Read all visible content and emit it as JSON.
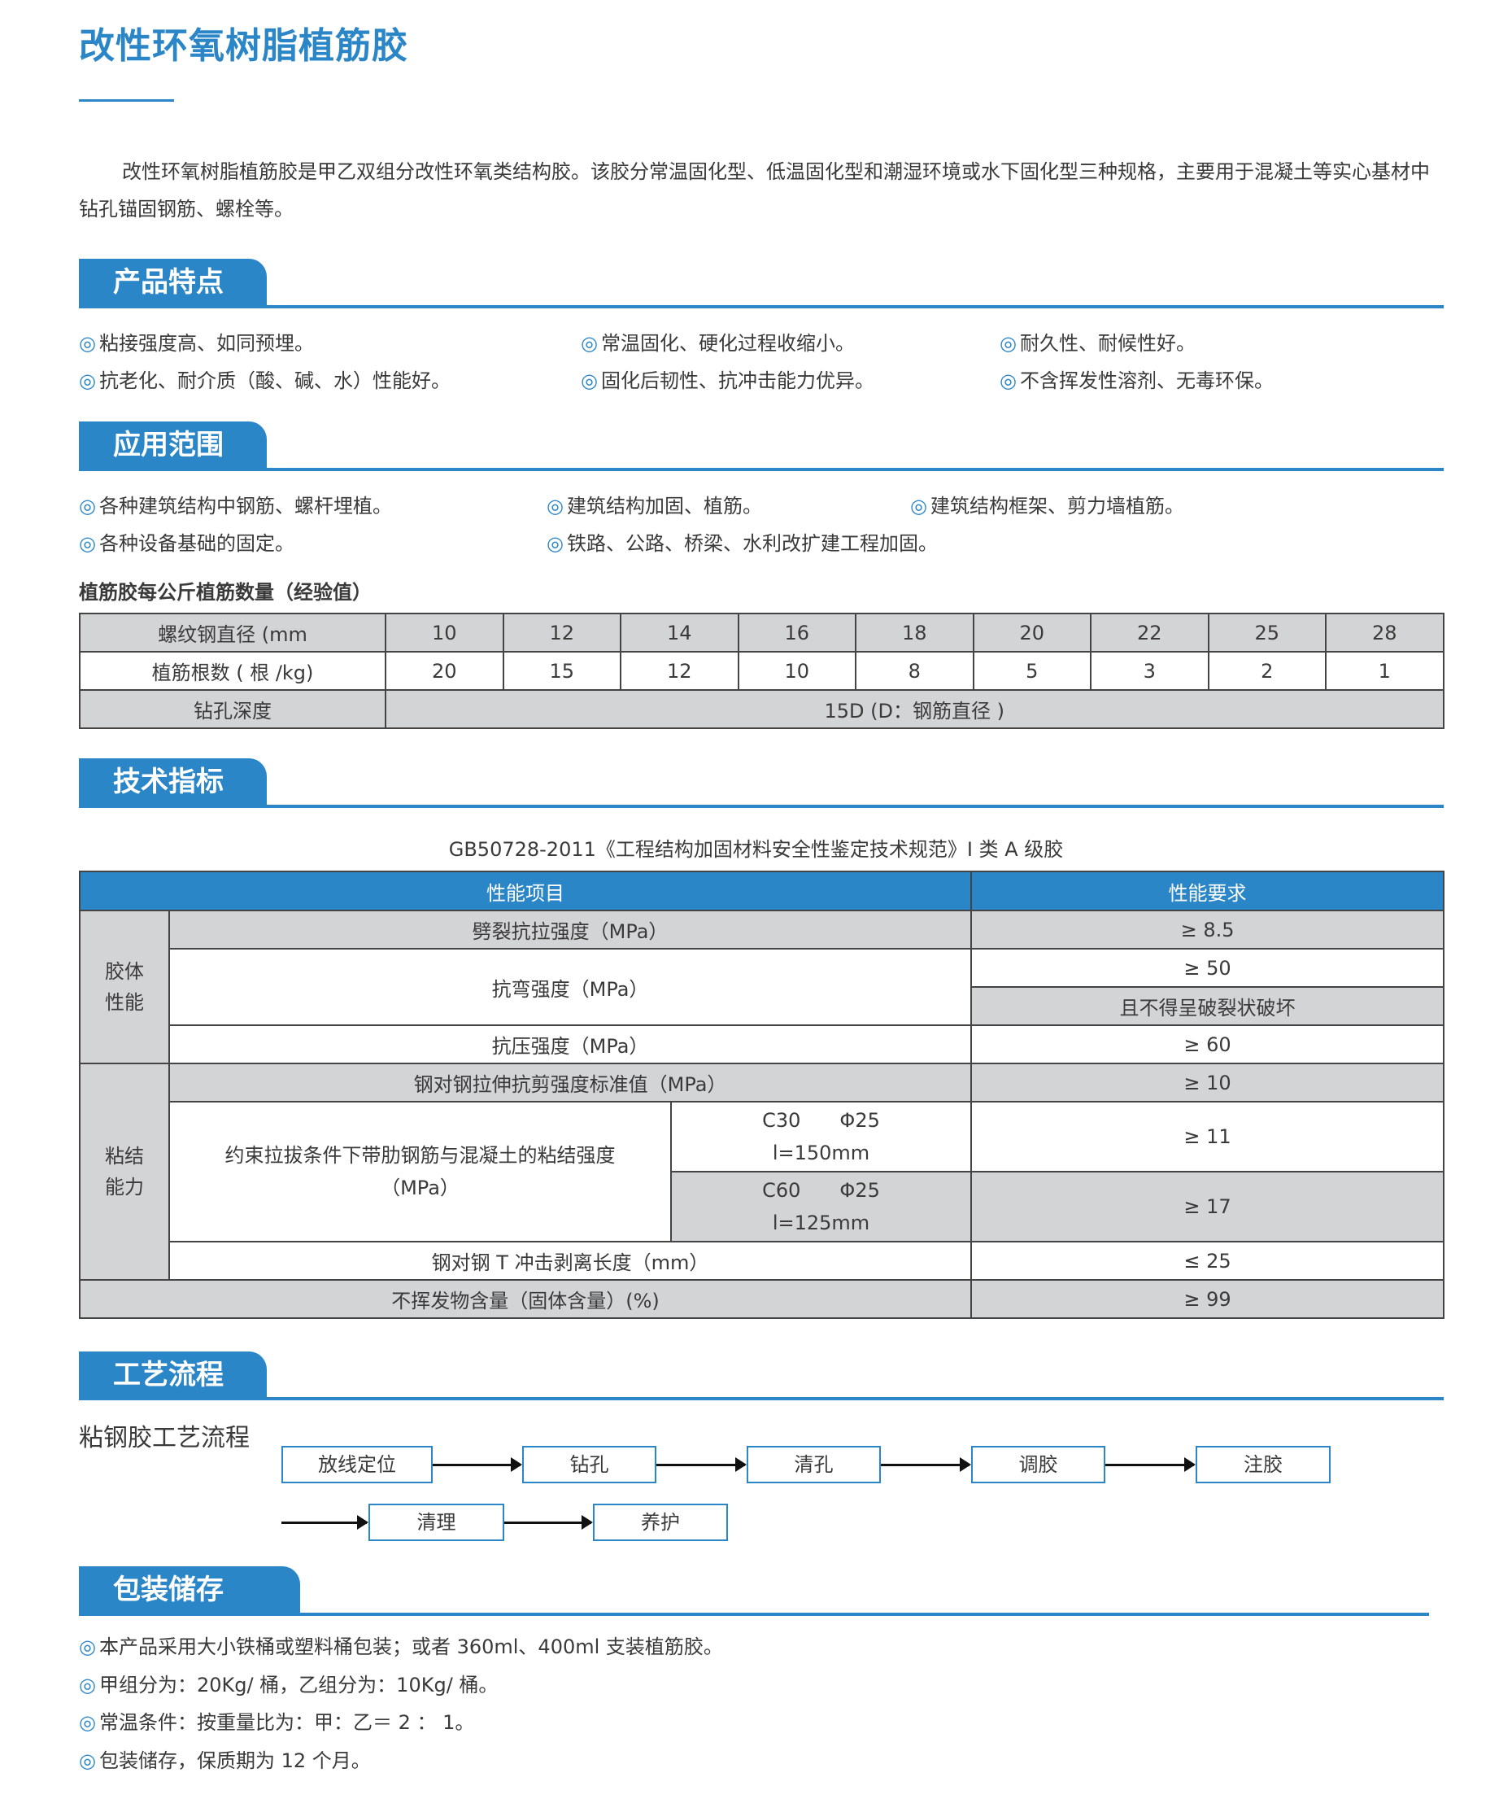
{
  "title": "改性环氧树脂植筋胶",
  "intro": "改性环氧树脂植筋胶是甲乙双组分改性环氧类结构胶。该胶分常温固化型、低温固化型和潮湿环境或水下固化型三种规格，主要用于混凝土等实心基材中钻孔锚固钢筋、螺栓等。",
  "bullet": "◎",
  "colors": {
    "accent": "#2b86c8",
    "cell_gray": "#d3d4d5"
  },
  "features": {
    "heading": "产品特点",
    "items": [
      "粘接强度高、如同预埋。",
      "常温固化、硬化过程收缩小。",
      "耐久性、耐候性好。",
      "抗老化、耐介质（酸、碱、水）性能好。",
      "固化后韧性、抗冲击能力优异。",
      "不含挥发性溶剂、无毒环保。"
    ]
  },
  "applications": {
    "heading": "应用范围",
    "items": [
      "各种建筑结构中钢筋、螺杆埋植。",
      "建筑结构加固、植筋。",
      "建筑结构框架、剪力墙植筋。",
      "各种设备基础的固定。",
      "铁路、公路、桥梁、水利改扩建工程加固。"
    ]
  },
  "rebar_table": {
    "caption": "植筋胶每公斤植筋数量（经验值）",
    "row1_label": "螺纹钢直径 (mm",
    "diameters": [
      "10",
      "12",
      "14",
      "16",
      "18",
      "20",
      "22",
      "25",
      "28"
    ],
    "row2_label": "植筋根数 ( 根 /kg)",
    "counts": [
      "20",
      "15",
      "12",
      "10",
      "8",
      "5",
      "3",
      "2",
      "1"
    ],
    "row3_label": "钻孔深度",
    "depth": "15D (D：钢筋直径 )"
  },
  "spec": {
    "heading": "技术指标",
    "caption": "GB50728-2011《工程结构加固材料安全性鉴定技术规范》I 类 A 级胶",
    "col_item": "性能项目",
    "col_req": "性能要求",
    "group1": "胶体性能",
    "g1_rows": [
      {
        "item": "劈裂抗拉强度（MPa）",
        "req": "≥ 8.5"
      },
      {
        "item": "抗弯强度（MPa）",
        "req": "≥ 50",
        "req2": "且不得呈破裂状破坏"
      },
      {
        "item": "抗压强度（MPa）",
        "req": "≥ 60"
      }
    ],
    "group2": "粘结能力",
    "shear": {
      "item": "钢对钢拉伸抗剪强度标准值（MPa）",
      "req": "≥ 10"
    },
    "bond": {
      "item": "约束拉拔条件下带肋钢筋与混凝土的粘结强度（MPa）",
      "cases": [
        {
          "cond1": "C30　　Φ25",
          "cond2": "l=150mm",
          "req": "≥ 11"
        },
        {
          "cond1": "C60　　Φ25",
          "cond2": "l=125mm",
          "req": "≥ 17"
        }
      ]
    },
    "peel": {
      "item": "钢对钢 T 冲击剥离长度（mm）",
      "req": "≤ 25"
    },
    "solid": {
      "item": "不挥发物含量（固体含量）(%)",
      "req": "≥ 99"
    }
  },
  "process": {
    "heading": "工艺流程",
    "label": "粘钢胶工艺流程",
    "steps": [
      "放线定位",
      "钻孔",
      "清孔",
      "调胶",
      "注胶",
      "清理",
      "养护"
    ]
  },
  "packaging": {
    "heading": "包装储存",
    "items": [
      "本产品采用大小铁桶或塑料桶包装；或者 360ml、400ml 支装植筋胶。",
      "甲组分为：20Kg/ 桶，乙组分为：10Kg/ 桶。",
      "常温条件：按重量比为：甲：乙＝ 2 ： 1。",
      "包装储存，保质期为 12 个月。"
    ]
  }
}
